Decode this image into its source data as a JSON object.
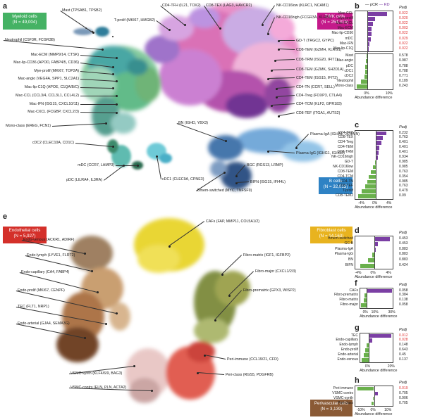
{
  "panels": {
    "a": "a",
    "b": "b",
    "c": "c",
    "d": "d",
    "e": "e",
    "f": "f",
    "g": "g",
    "h": "h"
  },
  "colors": {
    "myeloid": "#45b264",
    "tnk": "#c4198a",
    "bcell": "#2e82c4",
    "endo": "#d4302a",
    "fibro": "#e8b31f",
    "peri": "#8a5a35",
    "pcr_green": "#6ab04c",
    "rd_purple": "#7b3fa4",
    "sig_red": "#e03030"
  },
  "categories": {
    "myeloid": {
      "name": "Myeloid cells",
      "n": "(N = 49,004)"
    },
    "tnk": {
      "name": "T/NK cells",
      "n": "(N = 254,315)"
    },
    "bcell": {
      "name": "B cells",
      "n": "(N = 32,013)"
    },
    "endo": {
      "name": "Endothelial cells",
      "n": "(N = 5,927)"
    },
    "fibro": {
      "name": "Fibroblast cells",
      "n": "(N = 14,163)"
    },
    "peri": {
      "name": "Perivascular cells",
      "n": "(N = 3,139)"
    }
  },
  "umap_a_labels": [
    "Mast (TPSAB1, TPSB2)",
    "T-prolif (MKI67, HMGB2)",
    "CD4-TFH (IL21, TOX2)",
    "CD8-TEX (LAG3, HAVCR2)",
    "NK-CD16low (KLRC1, NCAM1)",
    "NK-CD16high (FCGR3A, KLRB1)",
    "Neutrophil (CSF3R, FCGR3B)",
    "GD-T (TRGC2, GYPC)",
    "CD8-TEM (GZMH, KLRG1)",
    "Mac-ECM (MMP9/14, CTSK)",
    "Mac-lip-CD36 (APOD, FABP4/5, CD36)",
    "CD8-TRM (ISG20, IFIT1)",
    "Mye-prolif (MKI67, TOP2A)",
    "CD8-TEM (GZMK, SH2D1A)",
    "Mac-angio (VEGFA, SPP1, SLC2A1)",
    "CD4-TEM (ISG15, IFIT3)",
    "Mac-lip-C1Q (APOE, C1QA/B/C)",
    "CD4-TN (CCR7, SELL)",
    "Mac-CCL (CCL3/4, CCL3L1, CCL4L2)",
    "CD4-Treg (FOXP3, CTLA4)",
    "Mac-IFN (ISG15, CXCL10/11)",
    "CD4-TCM (KLF2, GPR183)",
    "Mac-CXCL (FCGBP, CXCL2/3)",
    "CD8-TEF (ITGA1, AUTS2)",
    "BN (IGHD, YBX3)",
    "Mono-class (EREG, FCN1)",
    "Plasma-IgA (IGHA1, JCHAIN)",
    "cDC2 (CLEC10A, CD1C)",
    "Plasma-IgG (IGHG1, IGHG3)",
    "mDC (CCR7, LAMP3)",
    "BGC (RGS13, LRMP)",
    "pDC (LILRA4, IL3RA)",
    "cDC1 (CLEC9A, CPNE3)",
    "BIFN (ISG15, IFI44L)",
    "Bmem-switched (MYC, TNFSF9)"
  ],
  "umap_e_labels": [
    "CAFs (FAP, MMP11, COL5A1/2)",
    "Endo-venous (ACKR1, ADIRF)",
    "Fibro-matrix (IGF1, IGFBP2)",
    "Endo-lymph (LYVE1, FLRT2)",
    "Fibro-major (CXCL1/2/3)",
    "Endo-capillary (CA4, FABP4)",
    "Fibro-prematrix (GPX3, WISP2)",
    "Endo-prolif (MKI67, CENPF)",
    "TEC (FLT1, NRP1)",
    "Endo-arterial (GJA4, SEMA3G)",
    "Peri-immune (CCL19/21, CFD)",
    "VSMC-synth (KLF4/6/9, BAG3)",
    "Peri-class (RGS5, PDGFRB)",
    "VSMC-contrs (ELN, PLN, ACTA2)"
  ],
  "legend": {
    "pcr": "pCR",
    "rd": "RD"
  },
  "axis": {
    "title": "Abundance difference",
    "padj": "Padj"
  },
  "chart_data": [
    {
      "panel": "b",
      "type": "bar",
      "groups": [
        {
          "categories": [
            "Mac-CCL",
            "Mye-prolif",
            "Mac-CXCL",
            "Mac-ECM",
            "Mac-lip-CD36",
            "mDC",
            "Mac-IFN",
            "Mac-lip-C1Q"
          ],
          "values": [
            9,
            3.5,
            2.5,
            2,
            2,
            1.5,
            1,
            0.5
          ],
          "padj": [
            "0.022",
            "0.020",
            "0.022",
            "0.003",
            "0.022",
            "0.029",
            "0.022",
            "0.022"
          ]
        },
        {
          "categories": [
            "Mast",
            "Mac-angio",
            "pDC",
            "cDC1",
            "cDC2",
            "Neutrophil",
            "Mono-class"
          ],
          "values": [
            -0.5,
            -0.8,
            -1,
            -1.2,
            -1.5,
            -3,
            -5
          ],
          "padj": [
            "0.578",
            "0.987",
            "0.788",
            "0.788",
            "0.771",
            "0.189",
            "0.243"
          ]
        }
      ],
      "ticks": [
        "0%",
        "10%"
      ],
      "xlim": [
        -6,
        12
      ]
    },
    {
      "panel": "c",
      "type": "bar",
      "categories": [
        "CD4-TFH",
        "CD8-TEX",
        "CD4-Treg",
        "CD4-TEM",
        "CD8-TRM",
        "NK-CD16high",
        "GD-T",
        "NK-CD16low",
        "CD8-TEM",
        "CD4-TCM",
        "CD4-TN",
        "CD8-TEF",
        "T-prolif",
        "CD8-TEM2"
      ],
      "values": [
        3,
        2,
        1.5,
        1,
        0.8,
        0.5,
        -0.3,
        -0.8,
        -1.5,
        -2,
        -2.5,
        -3,
        -4,
        -5
      ],
      "padj": [
        "0.232",
        "0.763",
        "0.401",
        "0.401",
        "0.401",
        "0.934",
        "0.985",
        "0.985",
        "0.763",
        "0.354",
        "0.985",
        "0.763",
        "0.479",
        "0.09"
      ],
      "ticks": [
        "-4%",
        "0%",
        "4%"
      ],
      "xlim": [
        -6,
        5
      ]
    },
    {
      "panel": "d",
      "type": "bar",
      "categories": [
        "Bmem-switched",
        "GC-B",
        "Plasma-IgA",
        "Plasma-IgG",
        "BN",
        "BIFN"
      ],
      "values": [
        4,
        1,
        0.5,
        -0.5,
        -1.5,
        -3.5
      ],
      "padj": [
        "0.453",
        "0.453",
        "0.883",
        "0.883",
        "0.883",
        "0.424"
      ],
      "ticks": [
        "-4%",
        "0%",
        "4%"
      ],
      "xlim": [
        -5,
        5
      ]
    },
    {
      "panel": "f",
      "type": "bar",
      "categories": [
        "CAFs",
        "Fibro-prematrix",
        "Fibro-matrix",
        "Fibro-major"
      ],
      "values": [
        30,
        -2,
        -3,
        -6
      ],
      "padj": [
        "0.058",
        "0.384",
        "0.138",
        "0.058"
      ],
      "ticks": [
        "0%",
        "10%",
        "30%"
      ],
      "xlim": [
        -8,
        32
      ]
    },
    {
      "panel": "g",
      "type": "bar",
      "categories": [
        "TEC",
        "Endo-capillary",
        "Endo-lymph",
        "Endo-prolif",
        "Endo-arterial",
        "Endo-venous"
      ],
      "values": [
        20,
        3,
        -2,
        -3,
        -4,
        -6
      ],
      "padj": [
        "0.012",
        "0.028",
        "0.148",
        "0.643",
        "0.45",
        "0.137"
      ],
      "ticks": [
        "0%",
        "20%"
      ],
      "xlim": [
        -8,
        22
      ]
    },
    {
      "panel": "h",
      "type": "bar",
      "categories": [
        "Peri-immune",
        "VSMC-contrs",
        "VSMC-synth",
        "Peri-class"
      ],
      "values": [
        -12,
        3,
        -1,
        -2
      ],
      "padj": [
        "0.019",
        "0.705",
        "0.906",
        "0.705"
      ],
      "ticks": [
        "-10%",
        "0%",
        "10%"
      ],
      "xlim": [
        -14,
        14
      ]
    }
  ],
  "sig_padj": [
    "0.022",
    "0.020",
    "0.022",
    "0.003",
    "0.022",
    "0.029",
    "0.022",
    "0.022",
    "0.012",
    "0.028",
    "0.019"
  ]
}
